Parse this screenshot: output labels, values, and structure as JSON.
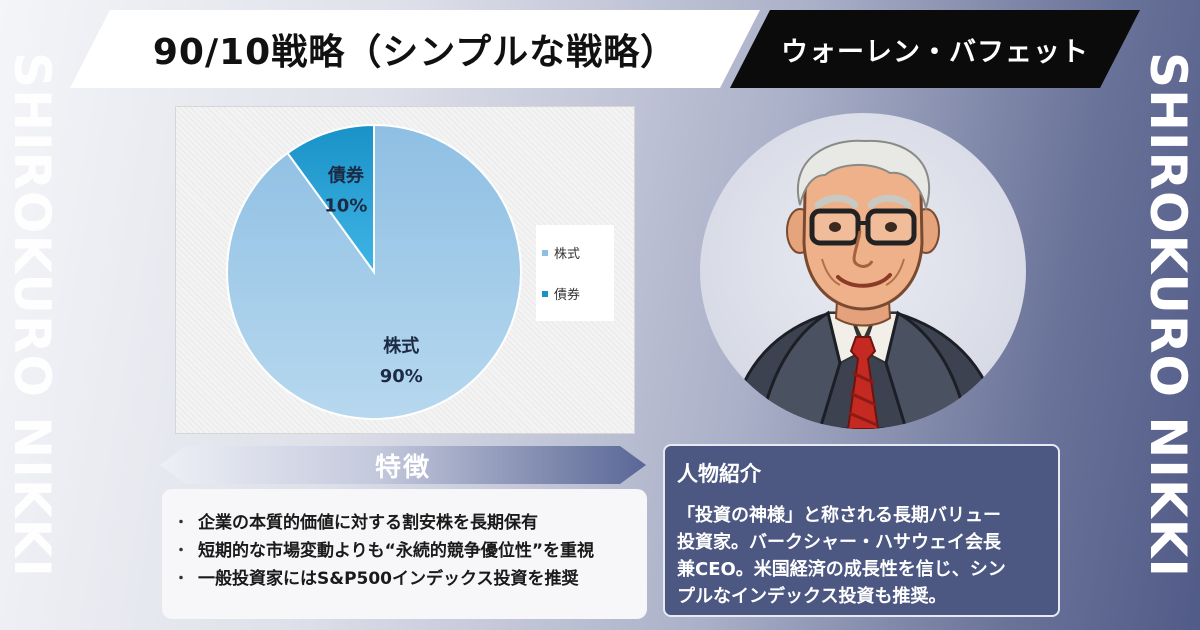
{
  "title": "90/10戦略（シンプルな戦略）",
  "person_name": "ウォーレン・バフェット",
  "side_brand": "SHIROKURO NIKKI",
  "chart_data": {
    "type": "pie",
    "slices": [
      {
        "name": "株式",
        "percent_label": "90%",
        "value": 90,
        "color": "#8ebfe3"
      },
      {
        "name": "債券",
        "percent_label": "10%",
        "value": 10,
        "color": "#1a92c7"
      }
    ],
    "legend": [
      "株式",
      "債券"
    ],
    "legend_position": "right"
  },
  "features": {
    "heading": "特徴",
    "bullet": "・",
    "items": [
      "企業の本質的価値に対する割安株を長期保有",
      "短期的な市場変動よりも“永続的競争優位性”を重視",
      "一般投資家にはS&P500インデックス投資を推奨"
    ]
  },
  "bio": {
    "heading": "人物紹介",
    "lines": [
      "「投資の神様」と称される長期バリュー",
      "投資家。バークシャー・ハサウェイ会長",
      "兼CEO。米国経済の成長性を信じ、シン",
      "プルなインデックス投資も推奨。"
    ]
  },
  "colors": {
    "title_bg": "#ffffff",
    "name_bg": "#0b0b0b",
    "bio_bg": "#4c5782",
    "stocks": "#8ebfe3",
    "bonds": "#1a92c7"
  },
  "icons": [
    "warren-buffett-portrait"
  ]
}
